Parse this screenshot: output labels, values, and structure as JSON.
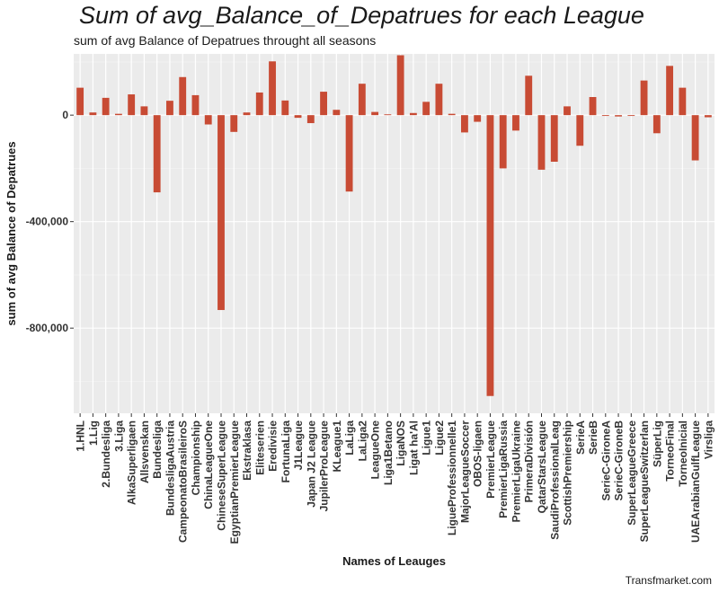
{
  "chart_data": {
    "type": "bar",
    "title": "Sum of avg_Balance_of_Depatrues for each League",
    "subtitle": "sum of avg Balance of Depatrues throught all seasons",
    "xlabel": "Names of Leauges",
    "ylabel": "sum of avg Balance of Depatrues",
    "caption": "Transfmarket.com",
    "bar_color": "#c84b34",
    "panel_color": "#ebebeb",
    "grid": true,
    "ylim": [
      -1120000,
      230000
    ],
    "yticks": [
      0,
      -400000,
      -800000
    ],
    "ytick_labels": [
      "0",
      "-400,000",
      "-800,000"
    ],
    "categories": [
      "1.HNL",
      "1.Lig",
      "2.Bundesliga",
      "3.Liga",
      "AlkaSuperligaen",
      "Allsvenskan",
      "Bundesliga",
      "BundesligaAustria",
      "CampeonatoBrasileiroS",
      "Championship",
      "ChinaLeagueOne",
      "ChineseSuperLeague",
      "EgyptianPremierLeague",
      "Ekstraklasa",
      "Eliteserien",
      "Eredivisie",
      "FortunaLiga",
      "J1League",
      "Japan J2 League",
      "JupilerProLeague",
      "KLeague1",
      "LaLiga",
      "LaLiga2",
      "LeagueOne",
      "Liga1Betano",
      "LigaNOS",
      "Ligat ha'Al",
      "Ligue1",
      "Ligue2",
      "LigueProfessionnelle1",
      "MajorLeagueSoccer",
      "OBOS-ligaen",
      "PremierLeague",
      "PremierLigaRussia",
      "PremierLigaUkraine",
      "PrimeraDivisión",
      "QatarStarsLeague",
      "SaudiProfessionalLeag",
      "ScottishPremiership",
      "SerieA",
      "SerieB",
      "SerieC-GironeA",
      "SerieC-GironeB",
      "SuperLeagueGreece",
      "SuperLeagueSwitzerlan",
      "SüperLig",
      "TorneoFinal",
      "TorneoInicial",
      "UAEArabianGulfLeague",
      "Virsliga"
    ],
    "values": [
      103000,
      10000,
      65000,
      5000,
      78000,
      33000,
      -290000,
      54000,
      143000,
      75000,
      -35000,
      -732000,
      -63000,
      10000,
      85000,
      202000,
      55000,
      -10000,
      -30000,
      88000,
      20000,
      -287000,
      118000,
      12000,
      3000,
      225000,
      8000,
      50000,
      118000,
      5000,
      -65000,
      -25000,
      -1055000,
      -200000,
      -58000,
      148000,
      -205000,
      -175000,
      33000,
      -115000,
      68000,
      -3000,
      -5000,
      -3000,
      130000,
      -68000,
      185000,
      103000,
      -170000,
      -8000
    ]
  }
}
